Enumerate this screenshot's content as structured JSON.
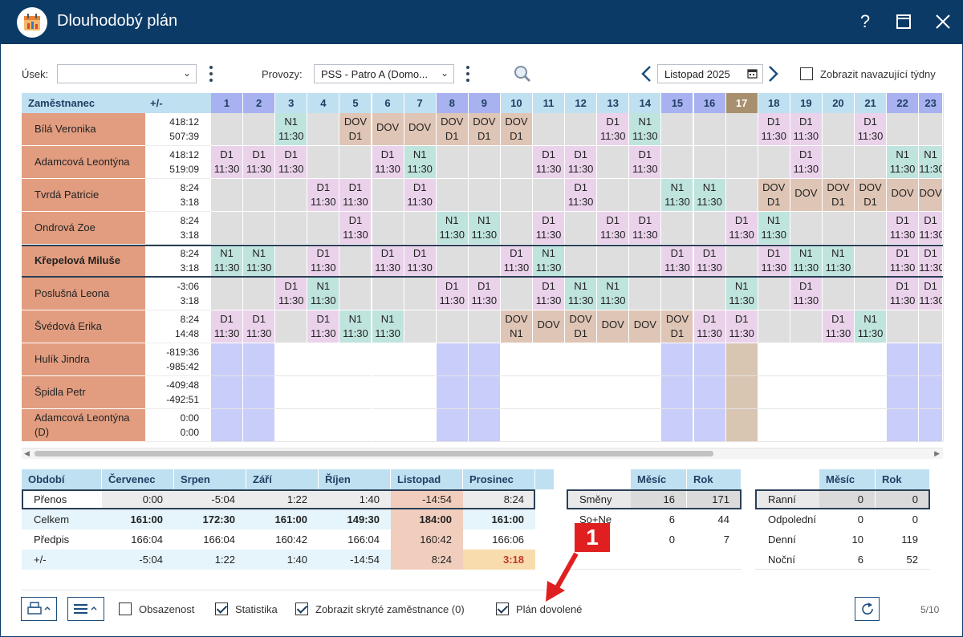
{
  "window": {
    "title": "Dlouhodobý plán",
    "help_label": "?"
  },
  "filters": {
    "usek_label": "Úsek:",
    "usek_value": "",
    "provozy_label": "Provozy:",
    "provozy_value": "PSS - Patro A (Domo...",
    "month_value": "Listopad 2025",
    "show_following_weeks_label": "Zobrazit navazující týdny",
    "show_following_weeks_checked": false
  },
  "schedule": {
    "col_employee": "Zaměstnanec",
    "col_balance": "+/-",
    "days": [
      "1",
      "2",
      "3",
      "4",
      "5",
      "6",
      "7",
      "8",
      "9",
      "10",
      "11",
      "12",
      "13",
      "14",
      "15",
      "16",
      "17",
      "18",
      "19",
      "20",
      "21",
      "22",
      "23"
    ],
    "day_types": [
      "w",
      "w",
      "n",
      "n",
      "n",
      "n",
      "n",
      "w",
      "w",
      "n",
      "n",
      "n",
      "n",
      "n",
      "w",
      "w",
      "h",
      "n",
      "n",
      "n",
      "n",
      "w",
      "w"
    ],
    "colors": {
      "weekend": "#c9cdf9",
      "holiday": "#d8c5b2",
      "N1": "#bfe3dd",
      "D1": "#ead2eb",
      "DOV": "#dfc5b5",
      "empty": "#dedede",
      "employee": "#e29d80"
    },
    "rows": [
      {
        "name": "Bílá Veronika",
        "balance": [
          "418:12",
          "507:39"
        ],
        "bold": false,
        "cells": [
          "",
          "",
          "N1|11:30",
          "",
          "DOV|D1",
          "DOV",
          "DOV",
          "DOV|D1",
          "DOV|D1",
          "DOV|D1",
          "",
          "",
          "D1|11:30",
          "N1|11:30",
          "",
          "",
          "",
          "D1|11:30",
          "D1|11:30",
          "",
          "D1|11:30",
          "",
          ""
        ]
      },
      {
        "name": "Adamcová Leontýna",
        "balance": [
          "418:12",
          "519:09"
        ],
        "bold": false,
        "cells": [
          "D1|11:30",
          "D1|11:30",
          "D1|11:30",
          "",
          "",
          "D1|11:30",
          "N1|11:30",
          "",
          "",
          "",
          "D1|11:30",
          "D1|11:30",
          "",
          "D1|11:30",
          "",
          "",
          "",
          "",
          "D1|11:30",
          "",
          "",
          "N1|11:30",
          "N1|11:30"
        ]
      },
      {
        "name": "Tvrdá Patricie",
        "balance": [
          "8:24",
          "3:18"
        ],
        "bold": false,
        "cells": [
          "",
          "",
          "",
          "D1|11:30",
          "D1|11:30",
          "",
          "D1|11:30",
          "",
          "",
          "",
          "",
          "D1|11:30",
          "",
          "",
          "N1|11:30",
          "N1|11:30",
          "",
          "DOV|D1",
          "DOV",
          "DOV|D1",
          "DOV|D1",
          "DOV",
          "DOV"
        ]
      },
      {
        "name": "Ondrová Zoe",
        "balance": [
          "8:24",
          "3:18"
        ],
        "bold": false,
        "cells": [
          "",
          "",
          "",
          "",
          "D1|11:30",
          "",
          "",
          "N1|11:30",
          "N1|11:30",
          "",
          "D1|11:30",
          "",
          "D1|11:30",
          "D1|11:30",
          "",
          "",
          "D1|11:30",
          "N1|11:30",
          "",
          "",
          "",
          "D1|11:30",
          "D1|11:30"
        ]
      },
      {
        "name": "Křepelová Miluše",
        "balance": [
          "8:24",
          "3:18"
        ],
        "bold": true,
        "cells": [
          "N1|11:30",
          "N1|11:30",
          "",
          "D1|11:30",
          "",
          "D1|11:30",
          "D1|11:30",
          "",
          "",
          "D1|11:30",
          "N1|11:30",
          "",
          "",
          "",
          "D1|11:30",
          "D1|11:30",
          "",
          "D1|11:30",
          "N1|11:30",
          "N1|11:30",
          "",
          "D1|11:30",
          "D1|11:30"
        ]
      },
      {
        "name": "Poslušná Leona",
        "balance": [
          "-3:06",
          "3:18"
        ],
        "bold": false,
        "cells": [
          "",
          "",
          "D1|11:30",
          "N1|11:30",
          "",
          "",
          "",
          "D1|11:30",
          "D1|11:30",
          "",
          "D1|11:30",
          "N1|11:30",
          "N1|11:30",
          "",
          "",
          "",
          "N1|11:30",
          "",
          "D1|11:30",
          "",
          "",
          "D1|11:30",
          "D1|11:30"
        ]
      },
      {
        "name": "Švédová Erika",
        "balance": [
          "8:24",
          "14:48"
        ],
        "bold": false,
        "cells": [
          "D1|11:30",
          "D1|11:30",
          "",
          "D1|11:30",
          "N1|11:30",
          "N1|11:30",
          "",
          "",
          "",
          "DOV|N1",
          "DOV",
          "DOV|D1",
          "DOV",
          "DOV",
          "DOV|D1",
          "D1|11:30",
          "D1|11:30",
          "",
          "",
          "D1|11:30",
          "N1|11:30",
          "",
          ""
        ]
      },
      {
        "name": "Hulík Jindra",
        "balance": [
          "-819:36",
          "-985:42"
        ],
        "bold": false,
        "cells": []
      },
      {
        "name": "Špidla Petr",
        "balance": [
          "-409:48",
          "-492:51"
        ],
        "bold": false,
        "cells": []
      },
      {
        "name": "Adamcová Leontýna (D)",
        "balance": [
          "0:00",
          "0:00"
        ],
        "bold": false,
        "cells": []
      }
    ]
  },
  "period_table": {
    "headers": [
      "Období",
      "Červenec",
      "Srpen",
      "Září",
      "Říjen",
      "Listopad",
      "Prosinec"
    ],
    "rows": [
      {
        "label": "Přenos",
        "values": [
          "0:00",
          "-5:04",
          "1:22",
          "1:40",
          "-14:54",
          "8:24"
        ]
      },
      {
        "label": "Celkem",
        "values": [
          "161:00",
          "172:30",
          "161:00",
          "149:30",
          "184:00",
          "161:00"
        ]
      },
      {
        "label": "Předpis",
        "values": [
          "166:04",
          "166:04",
          "160:42",
          "166:04",
          "160:42",
          "166:06"
        ]
      },
      {
        "label": "+/-",
        "values": [
          "-5:04",
          "1:22",
          "1:40",
          "-14:54",
          "8:24",
          "3:18"
        ]
      }
    ]
  },
  "shift_stats": {
    "headers": [
      "",
      "Měsíc",
      "Rok"
    ],
    "rows": [
      {
        "label": "Směny",
        "values": [
          "16",
          "171"
        ]
      },
      {
        "label": "So+Ne",
        "values": [
          "6",
          "44"
        ]
      },
      {
        "label": "Sv",
        "values": [
          "0",
          "7"
        ]
      }
    ]
  },
  "time_stats": {
    "headers": [
      "",
      "Měsíc",
      "Rok"
    ],
    "rows": [
      {
        "label": "Ranní",
        "values": [
          "0",
          "0"
        ]
      },
      {
        "label": "Odpolední",
        "values": [
          "0",
          "0"
        ]
      },
      {
        "label": "Denní",
        "values": [
          "10",
          "119"
        ]
      },
      {
        "label": "Noční",
        "values": [
          "6",
          "52"
        ]
      }
    ]
  },
  "annotation": {
    "label": "1",
    "color": "#e02020"
  },
  "footer": {
    "occupancy_label": "Obsazenost",
    "occupancy_checked": false,
    "statistics_label": "Statistika",
    "statistics_checked": true,
    "hidden_employees_label": "Zobrazit skryté zaměstnance (0)",
    "hidden_employees_checked": true,
    "vacation_plan_label": "Plán dovolené",
    "vacation_plan_checked": true,
    "page_indicator": "5/10"
  }
}
